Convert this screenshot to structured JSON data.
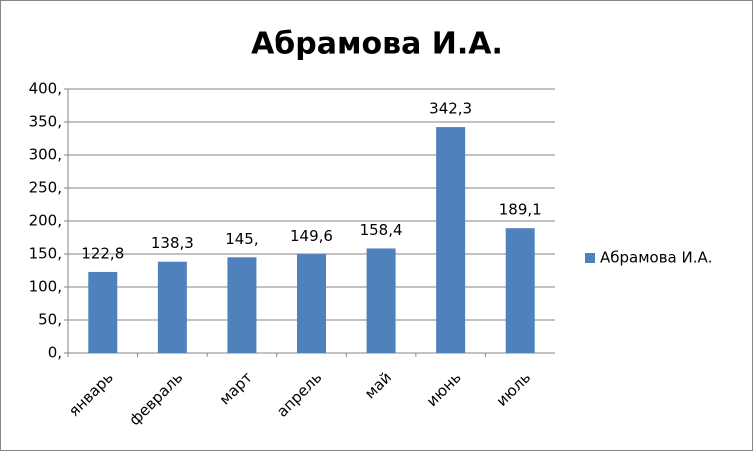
{
  "chart_data": {
    "type": "bar",
    "title": "Абрамова И.А.",
    "categories": [
      "январь",
      "февраль",
      "март",
      "апрель",
      "май",
      "июнь",
      "июль"
    ],
    "series": [
      {
        "name": "Абрамова И.А.",
        "color": "#4f81bd",
        "values": [
          122.8,
          138.3,
          145,
          149.6,
          158.4,
          342.3,
          189.1
        ],
        "value_labels": [
          "122,8",
          "138,3",
          "145,",
          "149,6",
          "158,4",
          "342,3",
          "189,1"
        ]
      }
    ],
    "ylim": [
      0,
      400
    ],
    "yticks": [
      {
        "value": 0,
        "label": "0,"
      },
      {
        "value": 50,
        "label": "50,"
      },
      {
        "value": 100,
        "label": "100,"
      },
      {
        "value": 150,
        "label": "150,"
      },
      {
        "value": 200,
        "label": "200,"
      },
      {
        "value": 250,
        "label": "250,"
      },
      {
        "value": 300,
        "label": "300,"
      },
      {
        "value": 350,
        "label": "350,"
      },
      {
        "value": 400,
        "label": "400,"
      }
    ],
    "grid": true,
    "legend": "right"
  }
}
